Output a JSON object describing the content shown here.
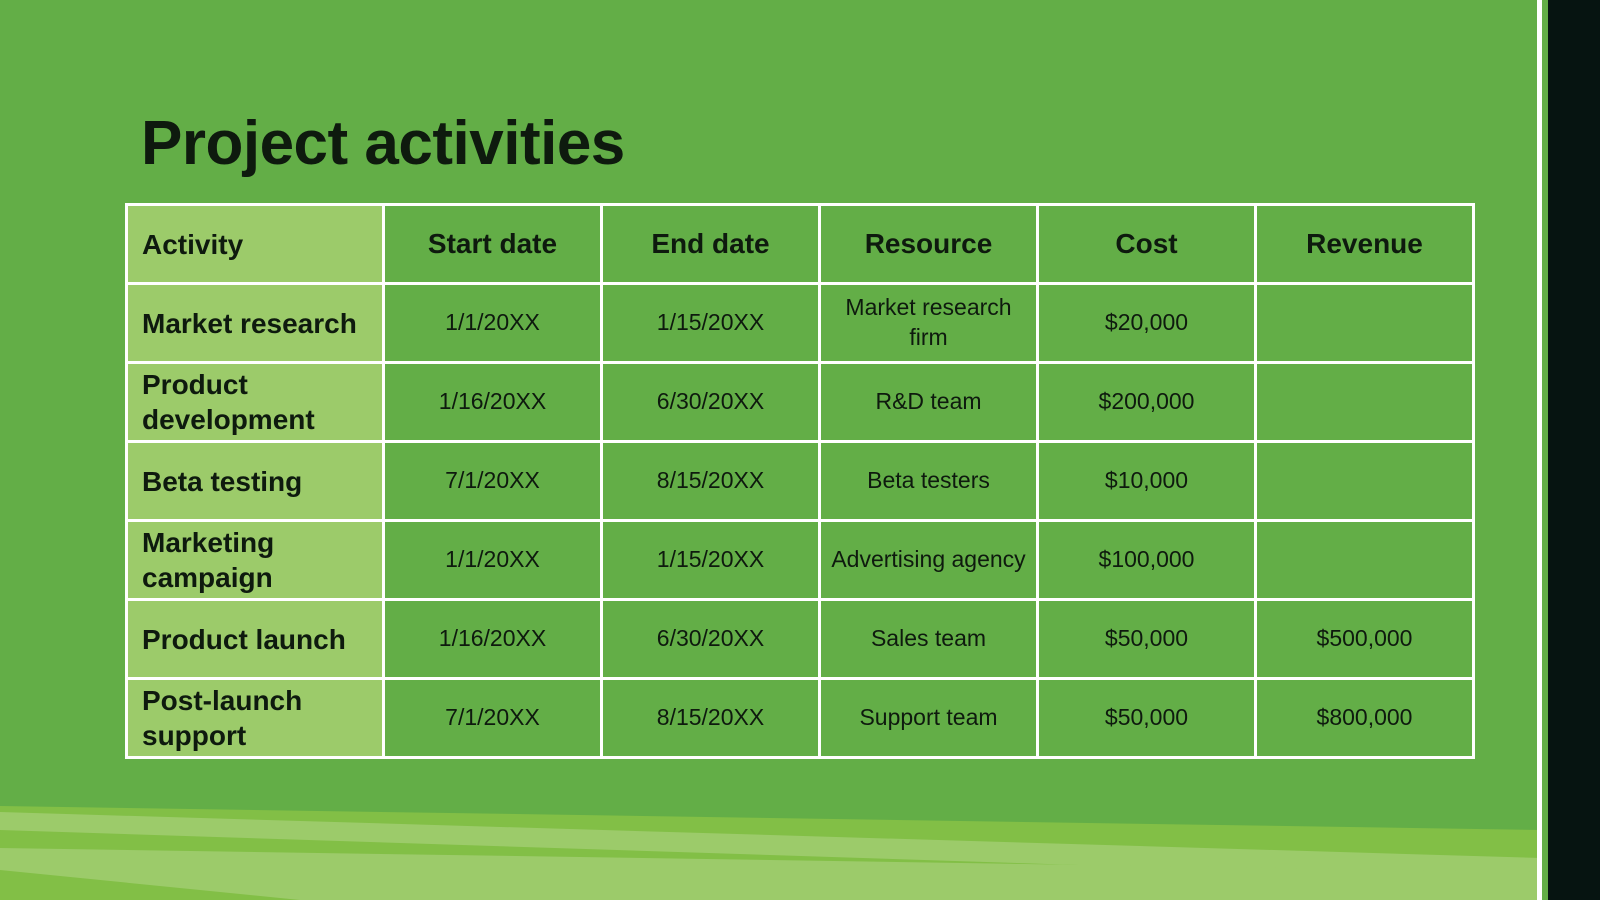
{
  "title": "Project activities",
  "table": {
    "headers": [
      "Activity",
      "Start date",
      "End date",
      "Resource",
      "Cost",
      "Revenue"
    ],
    "rows": [
      [
        "Market research",
        "1/1/20XX",
        "1/15/20XX",
        "Market research firm",
        "$20,000",
        null
      ],
      [
        "Product development",
        "1/16/20XX",
        "6/30/20XX",
        "R&D team",
        "$200,000",
        null
      ],
      [
        "Beta testing",
        "7/1/20XX",
        "8/15/20XX",
        "Beta testers",
        "$10,000",
        null
      ],
      [
        "Marketing campaign",
        "1/1/20XX",
        "1/15/20XX",
        "Advertising agency",
        "$100,000",
        null
      ],
      [
        "Product launch",
        "1/16/20XX",
        "6/30/20XX",
        "Sales team",
        "$50,000",
        "$500,000"
      ],
      [
        "Post-launch support",
        "7/1/20XX",
        "8/15/20XX",
        "Support team",
        "$50,000",
        "$800,000"
      ]
    ]
  }
}
